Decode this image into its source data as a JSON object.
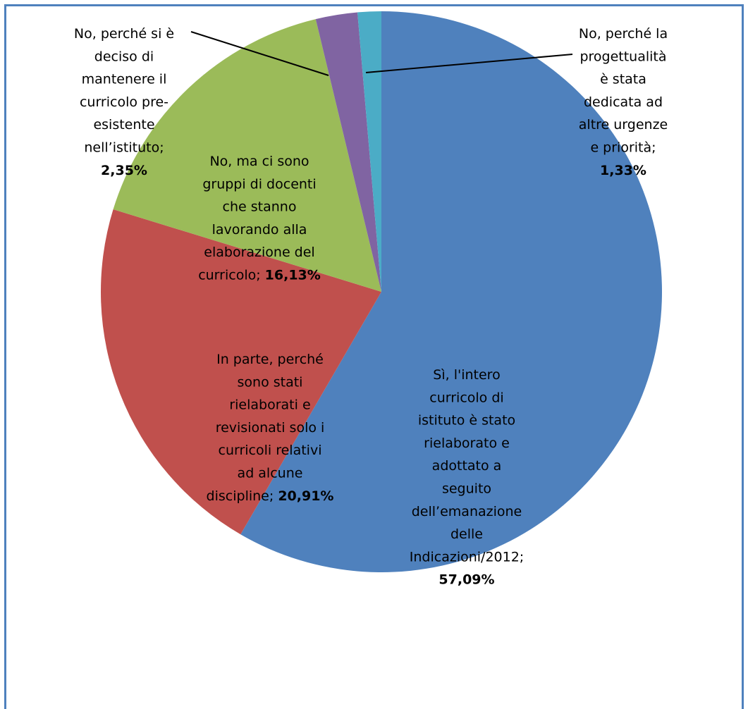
{
  "chart_data": {
    "type": "pie",
    "start_angle_deg": 0,
    "direction": "clockwise",
    "slices": [
      {
        "name": "Sì, l'intero curricolo di istituto è stato rielaborato e adottato a seguito dell’emanazione delle Indicazioni/2012",
        "value": 57.09,
        "label_lines": [
          "Sì, l'intero",
          "curricolo di",
          "istituto è stato",
          "rielaborato e",
          "adottato a",
          "seguito",
          "dell’emanazione",
          "delle",
          "Indicazioni/2012;"
        ],
        "percent_text": "57,09%",
        "color": "#4f81bd"
      },
      {
        "name": "In parte, perché sono stati rielaborati e revisionati solo i curricoli relativi ad alcune discipline",
        "value": 20.91,
        "label_lines": [
          "In parte, perché",
          "sono stati",
          "rielaborati e",
          "revisionati solo i",
          "curricoli relativi",
          "ad alcune",
          "discipline;"
        ],
        "percent_text": "20,91%",
        "color": "#c0504d"
      },
      {
        "name": "No, ma ci sono gruppi di docenti che stanno lavorando alla elaborazione del curricolo",
        "value": 16.13,
        "label_lines": [
          "No, ma ci sono",
          "gruppi di docenti",
          "che stanno",
          "lavorando alla",
          "elaborazione del",
          "curricolo;"
        ],
        "percent_text": "16,13%",
        "color": "#9bbb59"
      },
      {
        "name": "No, perché si è deciso di mantenere il curricolo pre-esistente nell’istituto",
        "value": 2.35,
        "label_lines": [
          "No, perché si è",
          "deciso di",
          "mantenere il",
          "curricolo pre-",
          "esistente",
          "nell’istituto;"
        ],
        "percent_text": "2,35%",
        "color": "#8064a2"
      },
      {
        "name": "No, perché la progettualità è stata dedicata ad altre urgenze e priorità",
        "value": 1.33,
        "label_lines": [
          "No, perché la",
          "progettualità",
          "è stata",
          "dedicata ad",
          "altre urgenze",
          "e priorità;"
        ],
        "percent_text": "1,33%",
        "color": "#4bacc6"
      }
    ]
  }
}
